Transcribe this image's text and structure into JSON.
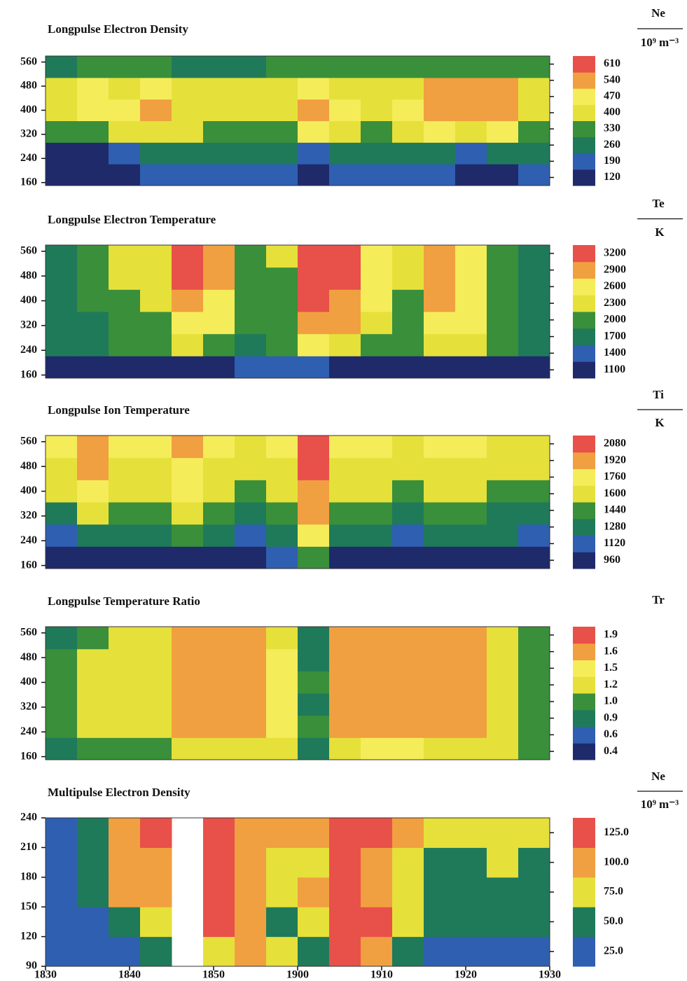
{
  "chart_data": [
    {
      "type": "heatmap",
      "title": "Longpulse Electron Density",
      "colorbar_label": "Ne",
      "colorbar_unit": "10⁹ m⁻³",
      "ylim": [
        150,
        580
      ],
      "yticks": [
        160,
        240,
        320,
        400,
        480,
        560
      ],
      "colorbar_ticks": [
        120,
        190,
        260,
        330,
        400,
        470,
        540,
        610
      ],
      "colors": [
        "#1f2a6b",
        "#2f5fb0",
        "#1f7a5a",
        "#3a8f3a",
        "#e6e03a",
        "#f5ec5a",
        "#f0a040",
        "#e8504a"
      ],
      "values": [
        [
          130,
          130,
          140,
          200,
          210,
          200,
          220,
          230,
          180,
          240,
          250,
          250,
          240,
          150,
          180,
          200
        ],
        [
          150,
          160,
          250,
          260,
          270,
          270,
          280,
          290,
          220,
          290,
          300,
          300,
          290,
          220,
          260,
          280
        ],
        [
          330,
          380,
          420,
          450,
          400,
          380,
          370,
          380,
          470,
          400,
          380,
          400,
          500,
          450,
          500,
          360
        ],
        [
          420,
          520,
          480,
          560,
          450,
          440,
          430,
          440,
          560,
          470,
          450,
          480,
          600,
          580,
          600,
          430
        ],
        [
          420,
          480,
          450,
          500,
          440,
          430,
          420,
          430,
          520,
          460,
          440,
          460,
          580,
          560,
          580,
          420
        ],
        [
          320,
          340,
          330,
          340,
          320,
          320,
          320,
          330,
          360,
          330,
          330,
          330,
          380,
          380,
          380,
          330
        ]
      ]
    },
    {
      "type": "heatmap",
      "title": "Longpulse Electron Temperature",
      "colorbar_label": "Te",
      "colorbar_unit": "K",
      "ylim": [
        150,
        580
      ],
      "yticks": [
        160,
        240,
        320,
        400,
        480,
        560
      ],
      "colorbar_ticks": [
        1100,
        1400,
        1700,
        2000,
        2300,
        2600,
        2900,
        3200
      ],
      "colors": [
        "#1f2a6b",
        "#2f5fb0",
        "#1f7a5a",
        "#3a8f3a",
        "#e6e03a",
        "#f5ec5a",
        "#f0a040",
        "#e8504a"
      ],
      "values": [
        [
          1200,
          1200,
          1300,
          1300,
          1300,
          1300,
          1400,
          1400,
          1500,
          1300,
          1300,
          1300,
          1300,
          1300,
          1300,
          1300
        ],
        [
          1700,
          1800,
          2000,
          2100,
          2300,
          2200,
          1900,
          2000,
          2600,
          2500,
          2200,
          2000,
          2300,
          2300,
          2000,
          1800
        ],
        [
          1900,
          1900,
          2100,
          2200,
          2800,
          2600,
          2000,
          2100,
          3000,
          2900,
          2400,
          2100,
          2800,
          2600,
          2000,
          1900
        ],
        [
          1900,
          2000,
          2200,
          2300,
          3100,
          2800,
          2000,
          2100,
          3200,
          3100,
          2600,
          2200,
          3000,
          2700,
          2000,
          1900
        ],
        [
          1900,
          2000,
          2300,
          2400,
          3200,
          2900,
          2100,
          2200,
          3300,
          3200,
          2700,
          2300,
          3100,
          2800,
          2000,
          1900
        ],
        [
          1900,
          2000,
          2400,
          2500,
          3200,
          2900,
          2200,
          2300,
          3300,
          3200,
          2700,
          2300,
          3100,
          2800,
          2000,
          1900
        ]
      ]
    },
    {
      "type": "heatmap",
      "title": "Longpulse Ion Temperature",
      "colorbar_label": "Ti",
      "colorbar_unit": "K",
      "ylim": [
        150,
        580
      ],
      "yticks": [
        160,
        240,
        320,
        400,
        480,
        560
      ],
      "colorbar_ticks": [
        960,
        1120,
        1280,
        1440,
        1600,
        1760,
        1920,
        2080
      ],
      "colors": [
        "#1f2a6b",
        "#2f5fb0",
        "#1f7a5a",
        "#3a8f3a",
        "#e6e03a",
        "#f5ec5a",
        "#f0a040",
        "#e8504a"
      ],
      "values": [
        [
          1000,
          1050,
          1100,
          1100,
          1100,
          1100,
          1100,
          1200,
          1500,
          1100,
          1100,
          1100,
          1100,
          1100,
          1100,
          1100
        ],
        [
          1200,
          1400,
          1300,
          1350,
          1500,
          1300,
          1250,
          1400,
          1900,
          1300,
          1300,
          1250,
          1300,
          1300,
          1300,
          1250
        ],
        [
          1400,
          1700,
          1450,
          1500,
          1700,
          1500,
          1400,
          1500,
          2000,
          1450,
          1450,
          1400,
          1450,
          1450,
          1400,
          1400
        ],
        [
          1600,
          1850,
          1650,
          1650,
          1800,
          1650,
          1500,
          1600,
          2050,
          1600,
          1600,
          1550,
          1600,
          1600,
          1550,
          1500
        ],
        [
          1750,
          1950,
          1750,
          1750,
          1900,
          1750,
          1600,
          1700,
          2100,
          1750,
          1700,
          1650,
          1750,
          1700,
          1650,
          1600
        ],
        [
          1850,
          2000,
          1850,
          1850,
          1950,
          1850,
          1700,
          1800,
          2100,
          1850,
          1800,
          1750,
          1850,
          1800,
          1750,
          1700
        ]
      ]
    },
    {
      "type": "heatmap",
      "title": "Longpulse Temperature Ratio",
      "colorbar_label": "Tr",
      "ylim": [
        150,
        580
      ],
      "yticks": [
        160,
        240,
        320,
        400,
        480,
        560
      ],
      "colorbar_ticks": [
        0.4,
        0.6,
        0.9,
        {
          "value": 1,
          "label": "1.0"
        },
        1.2,
        1.5,
        1.6,
        1.9
      ],
      "colors": [
        "#1f2a6b",
        "#2f5fb0",
        "#1f7a5a",
        "#3a8f3a",
        "#e6e03a",
        "#f5ec5a",
        "#f0a040",
        "#e8504a"
      ],
      "values": [
        [
          0.9,
          1.0,
          1.1,
          1.1,
          1.3,
          1.4,
          1.3,
          1.3,
          0.9,
          1.4,
          1.5,
          1.5,
          1.4,
          1.4,
          1.2,
          1.0
        ],
        [
          1.0,
          1.2,
          1.2,
          1.3,
          1.7,
          1.7,
          1.6,
          1.5,
          1.0,
          1.7,
          1.7,
          1.7,
          1.7,
          1.6,
          1.3,
          1.1
        ],
        [
          1.0,
          1.3,
          1.2,
          1.4,
          1.7,
          1.8,
          1.6,
          1.5,
          0.9,
          1.8,
          1.7,
          1.7,
          1.7,
          1.7,
          1.3,
          1.1
        ],
        [
          1.0,
          1.2,
          1.3,
          1.4,
          1.8,
          1.7,
          1.7,
          1.5,
          1.0,
          1.7,
          1.8,
          1.7,
          1.7,
          1.7,
          1.3,
          1.1
        ],
        [
          1.0,
          1.2,
          1.3,
          1.3,
          1.7,
          1.7,
          1.6,
          1.5,
          0.9,
          1.7,
          1.7,
          1.6,
          1.7,
          1.6,
          1.3,
          1.1
        ],
        [
          0.9,
          1.1,
          1.2,
          1.3,
          1.7,
          1.6,
          1.6,
          1.4,
          0.9,
          1.7,
          1.7,
          1.6,
          1.6,
          1.6,
          1.2,
          1.0
        ]
      ]
    },
    {
      "type": "heatmap",
      "title": "Multipulse Electron Density",
      "colorbar_label": "Ne",
      "colorbar_unit": "10⁹ m⁻³",
      "ylim": [
        90,
        240
      ],
      "yticks": [
        90,
        120,
        150,
        180,
        210,
        240
      ],
      "colorbar_ticks": [
        {
          "value": 25,
          "label": "25.0"
        },
        {
          "value": 50,
          "label": "50.0"
        },
        {
          "value": 75,
          "label": "75.0"
        },
        {
          "value": 100,
          "label": "100.0"
        },
        {
          "value": 125,
          "label": "125.0"
        }
      ],
      "colors": [
        "#2f5fb0",
        "#1f7a5a",
        "#e6e03a",
        "#f0a040",
        "#e8504a"
      ],
      "x_labels": [
        "1830",
        "1840",
        "1850",
        "1900",
        "1910",
        "1920",
        "1930"
      ],
      "values": [
        [
          20,
          25,
          40,
          60,
          null,
          90,
          110,
          80,
          60,
          130,
          120,
          60,
          40,
          40,
          35,
          30
        ],
        [
          30,
          40,
          70,
          90,
          null,
          130,
          120,
          70,
          80,
          130,
          130,
          90,
          60,
          50,
          60,
          50
        ],
        [
          30,
          50,
          100,
          120,
          null,
          130,
          110,
          80,
          100,
          130,
          120,
          80,
          60,
          60,
          70,
          60
        ],
        [
          30,
          60,
          120,
          110,
          null,
          130,
          100,
          90,
          90,
          130,
          110,
          90,
          70,
          70,
          80,
          70
        ],
        [
          30,
          60,
          110,
          130,
          null,
          130,
          120,
          100,
          110,
          130,
          130,
          110,
          90,
          80,
          90,
          90
        ]
      ]
    }
  ]
}
